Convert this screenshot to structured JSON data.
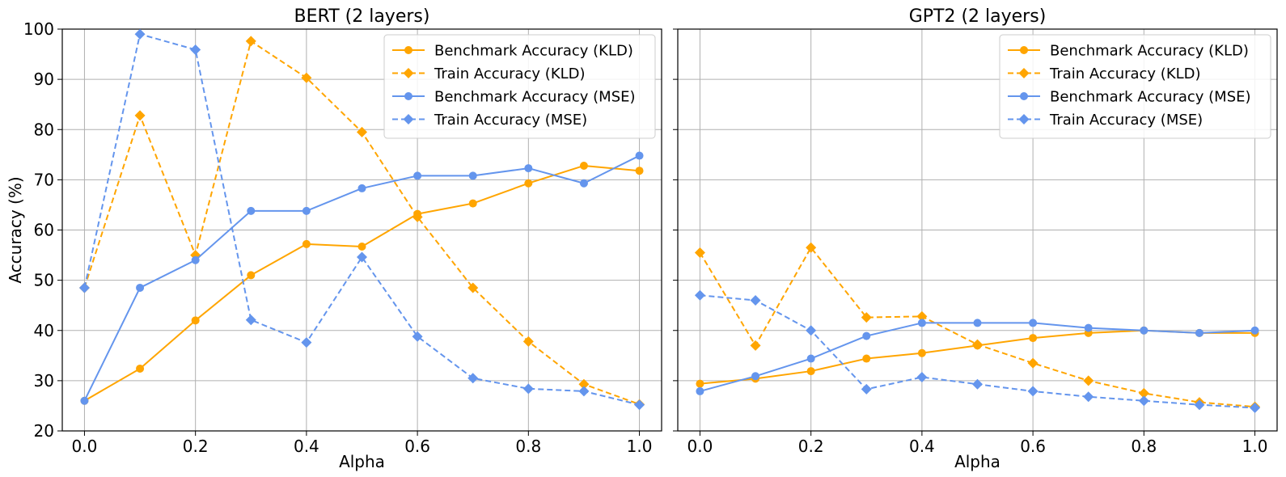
{
  "colors": {
    "kld": "#FFA500",
    "mse": "#6495ED",
    "grid": "#b0b0b0",
    "axis": "#000000"
  },
  "chart_data": [
    {
      "type": "line",
      "title": "BERT (2 layers)",
      "xlabel": "Alpha",
      "ylabel": "Accuracy (%)",
      "xlim": [
        -0.04,
        1.04
      ],
      "ylim": [
        20,
        100
      ],
      "xticks": [
        "0.0",
        "0.2",
        "0.4",
        "0.6",
        "0.8",
        "1.0"
      ],
      "yticks": [
        "20",
        "30",
        "40",
        "50",
        "60",
        "70",
        "80",
        "90",
        "100"
      ],
      "grid": true,
      "legend": "top-right",
      "x": [
        0.0,
        0.1,
        0.2,
        0.3,
        0.4,
        0.5,
        0.6,
        0.7,
        0.8,
        0.9,
        1.0
      ],
      "series": [
        {
          "name": "Benchmark Accuracy (KLD)",
          "color": "orange",
          "linestyle": "solid",
          "marker": "circle",
          "values": [
            26.0,
            32.4,
            42.0,
            51.0,
            57.2,
            56.7,
            63.2,
            65.3,
            69.3,
            72.8,
            71.8
          ]
        },
        {
          "name": "Train Accuracy (KLD)",
          "color": "orange",
          "linestyle": "dashed",
          "marker": "diamond",
          "values": [
            48.5,
            82.8,
            55.0,
            97.6,
            90.3,
            79.5,
            62.6,
            48.5,
            37.8,
            29.3,
            25.3
          ]
        },
        {
          "name": "Benchmark Accuracy (MSE)",
          "color": "cornflowerblue",
          "linestyle": "solid",
          "marker": "circle",
          "values": [
            26.0,
            48.5,
            54.0,
            63.8,
            63.8,
            68.3,
            70.8,
            70.8,
            72.3,
            69.3,
            74.8
          ]
        },
        {
          "name": "Train Accuracy (MSE)",
          "color": "cornflowerblue",
          "linestyle": "dashed",
          "marker": "diamond",
          "values": [
            48.5,
            99.0,
            95.9,
            42.1,
            37.6,
            54.6,
            38.8,
            30.5,
            28.4,
            27.9,
            25.2
          ]
        }
      ]
    },
    {
      "type": "line",
      "title": "GPT2 (2 layers)",
      "xlabel": "Alpha",
      "ylabel": "",
      "xlim": [
        -0.04,
        1.04
      ],
      "ylim": [
        20,
        100
      ],
      "xticks": [
        "0.0",
        "0.2",
        "0.4",
        "0.6",
        "0.8",
        "1.0"
      ],
      "yticks": [],
      "grid": true,
      "legend": "top-right",
      "x": [
        0.0,
        0.1,
        0.2,
        0.3,
        0.4,
        0.5,
        0.6,
        0.7,
        0.8,
        0.9,
        1.0
      ],
      "series": [
        {
          "name": "Benchmark Accuracy (KLD)",
          "color": "orange",
          "linestyle": "solid",
          "marker": "circle",
          "values": [
            29.4,
            30.4,
            31.9,
            34.4,
            35.5,
            37.0,
            38.5,
            39.5,
            40.0,
            39.5,
            39.5
          ]
        },
        {
          "name": "Train Accuracy (KLD)",
          "color": "orange",
          "linestyle": "dashed",
          "marker": "diamond",
          "values": [
            55.5,
            37.0,
            56.5,
            42.6,
            42.8,
            37.2,
            33.5,
            30.0,
            27.5,
            25.7,
            24.8
          ]
        },
        {
          "name": "Benchmark Accuracy (MSE)",
          "color": "cornflowerblue",
          "linestyle": "solid",
          "marker": "circle",
          "values": [
            27.9,
            30.9,
            34.4,
            38.9,
            41.5,
            41.5,
            41.5,
            40.5,
            40.0,
            39.5,
            40.0
          ]
        },
        {
          "name": "Train Accuracy (MSE)",
          "color": "cornflowerblue",
          "linestyle": "dashed",
          "marker": "diamond",
          "values": [
            47.0,
            46.0,
            40.0,
            28.3,
            30.7,
            29.3,
            27.9,
            26.8,
            26.0,
            25.2,
            24.6
          ]
        }
      ]
    }
  ]
}
